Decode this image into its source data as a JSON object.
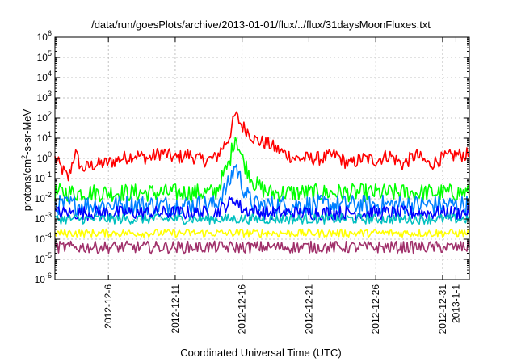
{
  "chart_data": {
    "type": "line",
    "title": "/data/run/goesPlots/archive/2013-01-01/flux/../flux/31daysMoonFluxes.txt",
    "xlabel": "Coordinated Universal Time (UTC)",
    "ylabel": "protons/cm2-s-sr-MeV",
    "ylabel_parts": {
      "pre": "protons/cm",
      "sup": "2",
      "post": "-s-sr-MeV"
    },
    "yscale": "log",
    "ylim": [
      1e-06,
      1000000.0
    ],
    "ytick_labels": [
      {
        "exp": -6,
        "text": "10",
        "sup": "-6"
      },
      {
        "exp": -5,
        "text": "10",
        "sup": "-5"
      },
      {
        "exp": -4,
        "text": "10",
        "sup": "-4"
      },
      {
        "exp": -3,
        "text": "10",
        "sup": "-3"
      },
      {
        "exp": -2,
        "text": "10",
        "sup": "-2"
      },
      {
        "exp": -1,
        "text": "10",
        "sup": "-1"
      },
      {
        "exp": 0,
        "text": "10",
        "sup": "0"
      },
      {
        "exp": 1,
        "text": "10",
        "sup": "1"
      },
      {
        "exp": 2,
        "text": "10",
        "sup": "2"
      },
      {
        "exp": 3,
        "text": "10",
        "sup": "3"
      },
      {
        "exp": 4,
        "text": "10",
        "sup": "4"
      },
      {
        "exp": 5,
        "text": "10",
        "sup": "5"
      },
      {
        "exp": 6,
        "text": "10",
        "sup": "6"
      }
    ],
    "xlim": [
      "2012-12-02",
      "2013-01-02"
    ],
    "xtick_labels": [
      {
        "date": "2012-12-06",
        "label": "2012-12-6"
      },
      {
        "date": "2012-12-11",
        "label": "2012-12-11"
      },
      {
        "date": "2012-12-16",
        "label": "2012-12-16"
      },
      {
        "date": "2012-12-21",
        "label": "2012-12-21"
      },
      {
        "date": "2012-12-26",
        "label": "2012-12-26"
      },
      {
        "date": "2012-12-31",
        "label": "2012-12-31"
      },
      {
        "date": "2013-01-01",
        "label": "2013-1-1"
      }
    ],
    "grid": true,
    "legend": "none",
    "series": [
      {
        "color": "#ff0000",
        "x": [
          "2012-12-02",
          "2012-12-03",
          "2012-12-03T12:00",
          "2012-12-04",
          "2012-12-05",
          "2012-12-06",
          "2012-12-07",
          "2012-12-08",
          "2012-12-09",
          "2012-12-10",
          "2012-12-11",
          "2012-12-12",
          "2012-12-13",
          "2012-12-14",
          "2012-12-15",
          "2012-12-15T12:00",
          "2012-12-16",
          "2012-12-16T12:00",
          "2012-12-17",
          "2012-12-18",
          "2012-12-19",
          "2012-12-20",
          "2012-12-21",
          "2012-12-22",
          "2012-12-23",
          "2012-12-24",
          "2012-12-25",
          "2012-12-26",
          "2012-12-27",
          "2012-12-28",
          "2012-12-29",
          "2012-12-30",
          "2012-12-31",
          "2013-01-01",
          "2013-01-02"
        ],
        "y": [
          1,
          0.1,
          2,
          0.3,
          0.5,
          0.6,
          1,
          1.5,
          1,
          2,
          1,
          1.5,
          0.8,
          1,
          10,
          150,
          40,
          20,
          8,
          5,
          2,
          1,
          1,
          1,
          1.5,
          0.5,
          1,
          0.8,
          1.5,
          0.5,
          1.5,
          0.5,
          1,
          1.5,
          1.5
        ]
      },
      {
        "color": "#00ff00",
        "x": [
          "2012-12-02",
          "2012-12-04",
          "2012-12-06",
          "2012-12-08",
          "2012-12-10",
          "2012-12-12",
          "2012-12-14",
          "2012-12-15",
          "2012-12-15T12:00",
          "2012-12-16",
          "2012-12-16T12:00",
          "2012-12-17",
          "2012-12-18",
          "2012-12-20",
          "2012-12-22",
          "2012-12-24",
          "2012-12-26",
          "2012-12-28",
          "2012-12-30",
          "2013-01-01",
          "2013-01-02"
        ],
        "y": [
          0.02,
          0.02,
          0.02,
          0.02,
          0.02,
          0.02,
          0.02,
          0.5,
          15,
          1,
          0.2,
          0.05,
          0.02,
          0.02,
          0.02,
          0.02,
          0.02,
          0.02,
          0.02,
          0.02,
          0.02
        ]
      },
      {
        "color": "#0080ff",
        "x": [
          "2012-12-02",
          "2012-12-06",
          "2012-12-10",
          "2012-12-14",
          "2012-12-15",
          "2012-12-15T12:00",
          "2012-12-16",
          "2012-12-16T12:00",
          "2012-12-17",
          "2012-12-19",
          "2012-12-23",
          "2012-12-27",
          "2012-12-31",
          "2013-01-02"
        ],
        "y": [
          0.005,
          0.005,
          0.005,
          0.005,
          0.05,
          0.5,
          0.05,
          0.01,
          0.005,
          0.005,
          0.005,
          0.005,
          0.005,
          0.005
        ]
      },
      {
        "color": "#0000ff",
        "x": [
          "2012-12-02",
          "2012-12-06",
          "2012-12-10",
          "2012-12-14",
          "2012-12-15T12:00",
          "2012-12-16",
          "2012-12-18",
          "2012-12-22",
          "2012-12-26",
          "2012-12-30",
          "2013-01-02"
        ],
        "y": [
          0.002,
          0.002,
          0.002,
          0.002,
          0.01,
          0.003,
          0.002,
          0.002,
          0.002,
          0.002,
          0.002
        ]
      },
      {
        "color": "#00c0c0",
        "x": [
          "2012-12-02",
          "2012-12-07",
          "2012-12-12",
          "2012-12-17",
          "2012-12-22",
          "2012-12-27",
          "2013-01-02"
        ],
        "y": [
          0.001,
          0.001,
          0.001,
          0.001,
          0.001,
          0.001,
          0.001
        ]
      },
      {
        "color": "#ffff00",
        "x": [
          "2012-12-02",
          "2012-12-07",
          "2012-12-12",
          "2012-12-17",
          "2012-12-22",
          "2012-12-27",
          "2013-01-02"
        ],
        "y": [
          0.0002,
          0.0002,
          0.0002,
          0.0002,
          0.0002,
          0.0002,
          0.0002
        ]
      },
      {
        "color": "#a0306a",
        "x": [
          "2012-12-02",
          "2012-12-07",
          "2012-12-12",
          "2012-12-17",
          "2012-12-22",
          "2012-12-27",
          "2013-01-02"
        ],
        "y": [
          4e-05,
          4e-05,
          4e-05,
          4e-05,
          4e-05,
          4e-05,
          4e-05
        ]
      }
    ]
  }
}
